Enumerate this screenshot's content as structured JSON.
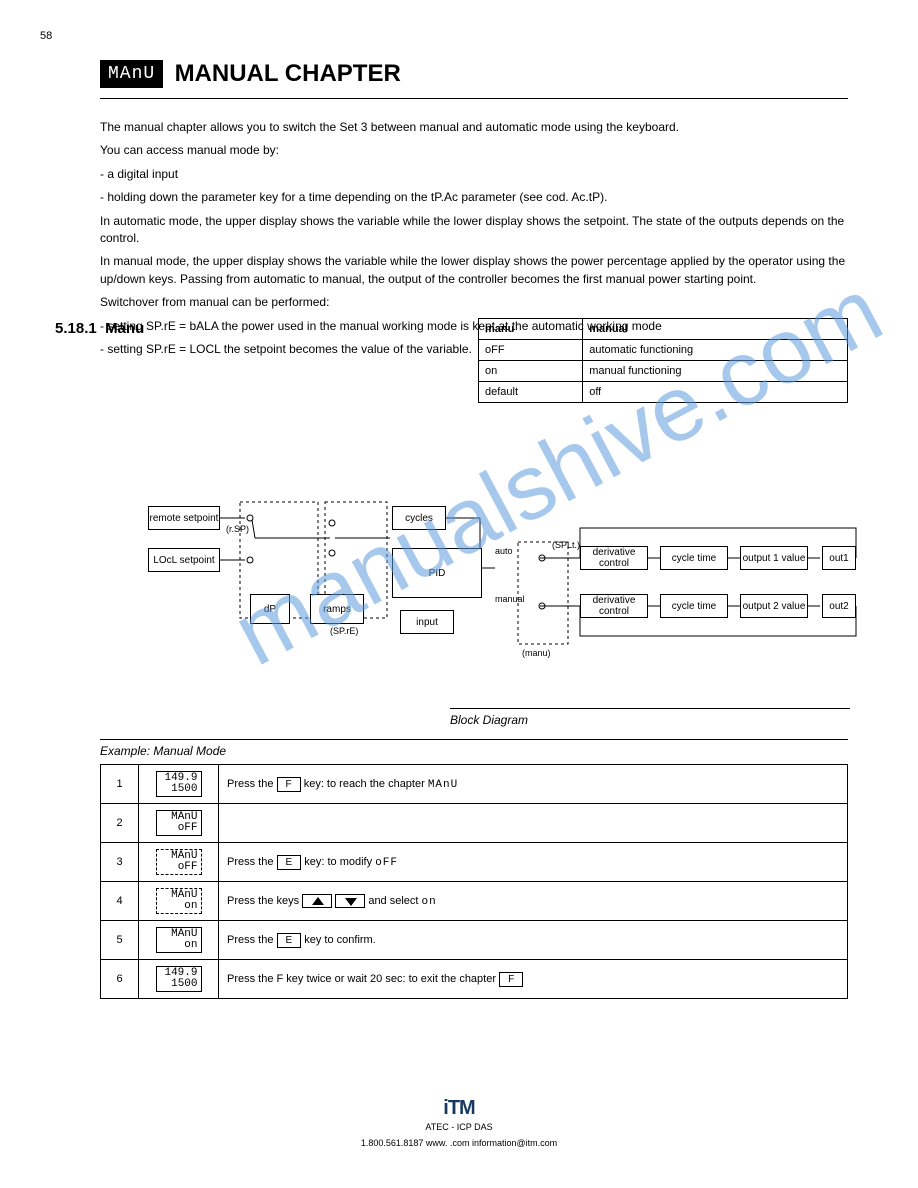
{
  "page_number": "58",
  "header": {
    "chip": "MAnU",
    "title": "MANUAL CHAPTER"
  },
  "text": {
    "intro1": "The manual chapter allows you to switch the Set 3 between manual and automatic mode using the keyboard.",
    "intro2": "You can access manual mode by:",
    "b1": "a digital input",
    "b2": "holding down the parameter key for a time depending on the tP.Ac parameter (see cod. Ac.tP).",
    "intro3": "In automatic mode, the upper display shows the variable while the lower display shows the setpoint. The state of the outputs depends on the control.",
    "intro4": "In manual mode, the upper display shows the variable while the lower display shows the power percentage applied by the operator using the up/down keys. Passing from automatic to manual, the output of the controller becomes the first manual power starting point.",
    "intro5": "Switchover from manual can be performed:",
    "b3": "setting SP.rE = bALA the power used in the manual working mode is kept at the automatic working mode",
    "b4": "setting SP.rE = LOCL the setpoint becomes the value of the variable.",
    "subnum": "5.18.1",
    "subtitle": "Manu"
  },
  "table": {
    "h1": "manu",
    "h2": "manual",
    "r1a": "oFF",
    "r1b": "automatic functioning",
    "r2a": "on",
    "r2b": "manual functioning",
    "r3a": "default",
    "r3b": "off"
  },
  "diagram": {
    "nodes": {
      "remote_sp": "remote setpoint",
      "local_sp": "LOcL setpoint",
      "dp": "dP",
      "ramps": "ramps",
      "cycles": "cycles",
      "pid": "PID",
      "auto": "auto",
      "manual": "manual",
      "input": "input",
      "deriv1": "derivative control",
      "cycle1": "cycle time",
      "out1": "output 1 value",
      "out1s": "out1",
      "deriv2": "derivative control",
      "cycle2": "cycle time",
      "out2": "output 2 value",
      "out2s": "out2",
      "rsp": "(r.SP)",
      "spre": "(SP.rE)",
      "manu": "(manu)",
      "split": "(SPLt.)"
    }
  },
  "example": {
    "heading1": "Block Diagram",
    "heading2": "Example: Manual Mode",
    "rows": [
      {
        "n": "1",
        "lcd_top": "149.9",
        "lcd_bot": "1500",
        "lcd_dashed": false,
        "text": "Press the  F  key: to reach the chapter  MAnU"
      },
      {
        "n": "2",
        "lcd_top": "MAnU",
        "lcd_bot": "oFF",
        "lcd_dashed": false,
        "text": ""
      },
      {
        "n": "3",
        "lcd_top": "MAnU",
        "lcd_bot": "oFF",
        "lcd_dashed": true,
        "text": "Press the  E  key: to modify  oFF"
      },
      {
        "n": "4",
        "lcd_top": "MAnU",
        "lcd_bot": "on",
        "lcd_dashed": true,
        "text": "Press the keys  ▲   ▼  and select  on"
      },
      {
        "n": "5",
        "lcd_top": "MAnU",
        "lcd_bot": "on",
        "lcd_dashed": false,
        "text": "Press the  E  key to confirm."
      },
      {
        "n": "6",
        "lcd_top": "149.9",
        "lcd_bot": "1500",
        "lcd_dashed": false,
        "text": "Press the F key twice or wait 20 sec: to exit the chapter  F"
      }
    ]
  },
  "footer": {
    "brand": "iTM",
    "sub": "ATEC - ICP DAS",
    "contact": "1.800.561.8187      www. .com      information@itm.com"
  },
  "colors": {
    "watermark": "#5d9bde",
    "logo": "#163a5f"
  }
}
